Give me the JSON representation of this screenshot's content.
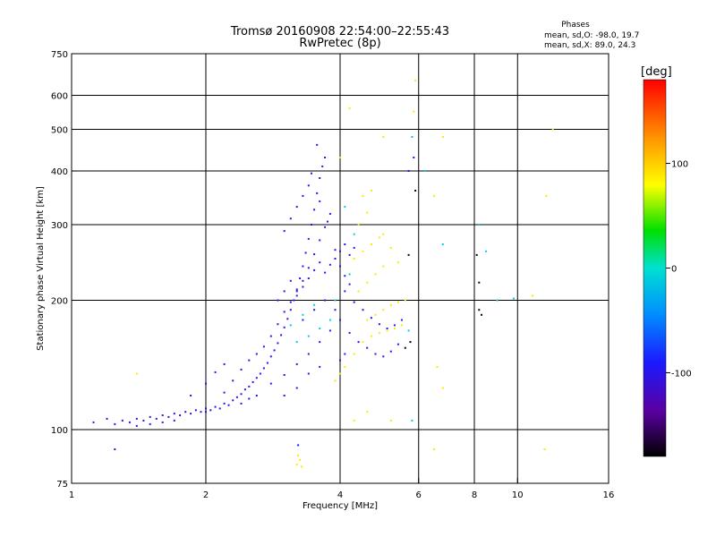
{
  "chart_data": {
    "type": "scatter",
    "title": "Tromsø 20160908 22:54:00–22:55:43",
    "subtitle": "RwPretec (8p)",
    "xlabel": "Frequency [MHz]",
    "ylabel": "Stationary phase Virtual Height [km]",
    "x_scale": "log",
    "y_scale": "log",
    "xlim": [
      1,
      16
    ],
    "ylim": [
      75,
      750
    ],
    "x_ticks": [
      1,
      2,
      4,
      6,
      8,
      10,
      16
    ],
    "x_tick_labels": [
      "1",
      "2",
      "4",
      "6",
      "8",
      "10",
      "16"
    ],
    "y_ticks": [
      75,
      100,
      200,
      300,
      400,
      500,
      600,
      750
    ],
    "y_tick_labels": [
      "75",
      "100",
      "200",
      "300",
      "400",
      "500",
      "600",
      "750"
    ],
    "grid": true,
    "stats_title": "Phases",
    "stats_lines": [
      "mean, sd,O: -98.0, 19.7",
      "mean, sd,X:  89.0, 24.3"
    ],
    "colorbar": {
      "label": "[deg]",
      "range": [
        -180,
        180
      ],
      "ticks": [
        100,
        0,
        -100
      ],
      "tick_labels": [
        "100",
        "0",
        "-100"
      ]
    },
    "series": [
      {
        "name": "O",
        "color_value": -98,
        "points": [
          [
            1.12,
            104
          ],
          [
            1.2,
            106
          ],
          [
            1.25,
            103
          ],
          [
            1.3,
            105
          ],
          [
            1.35,
            104
          ],
          [
            1.4,
            106
          ],
          [
            1.45,
            105
          ],
          [
            1.5,
            107
          ],
          [
            1.55,
            106
          ],
          [
            1.6,
            108
          ],
          [
            1.65,
            107
          ],
          [
            1.7,
            109
          ],
          [
            1.75,
            108
          ],
          [
            1.8,
            110
          ],
          [
            1.85,
            109
          ],
          [
            1.9,
            111
          ],
          [
            1.95,
            110
          ],
          [
            2.0,
            112
          ],
          [
            2.05,
            111
          ],
          [
            2.1,
            113
          ],
          [
            2.15,
            112
          ],
          [
            2.2,
            115
          ],
          [
            2.25,
            114
          ],
          [
            2.3,
            117
          ],
          [
            2.35,
            119
          ],
          [
            2.4,
            121
          ],
          [
            2.45,
            124
          ],
          [
            2.5,
            126
          ],
          [
            2.55,
            129
          ],
          [
            2.6,
            132
          ],
          [
            2.65,
            135
          ],
          [
            2.7,
            139
          ],
          [
            2.75,
            143
          ],
          [
            2.8,
            148
          ],
          [
            2.85,
            153
          ],
          [
            2.9,
            159
          ],
          [
            2.95,
            166
          ],
          [
            3.0,
            173
          ],
          [
            3.05,
            181
          ],
          [
            3.1,
            190
          ],
          [
            3.15,
            200
          ],
          [
            3.2,
            212
          ],
          [
            3.25,
            225
          ],
          [
            3.3,
            240
          ],
          [
            3.35,
            258
          ],
          [
            3.4,
            278
          ],
          [
            3.45,
            300
          ],
          [
            3.5,
            325
          ],
          [
            3.55,
            355
          ],
          [
            3.6,
            385
          ],
          [
            3.65,
            410
          ],
          [
            3.7,
            430
          ],
          [
            3.55,
            460
          ],
          [
            1.85,
            120
          ],
          [
            2.0,
            128
          ],
          [
            2.1,
            136
          ],
          [
            2.2,
            142
          ],
          [
            2.3,
            130
          ],
          [
            2.4,
            138
          ],
          [
            2.5,
            145
          ],
          [
            2.6,
            150
          ],
          [
            2.7,
            156
          ],
          [
            2.8,
            165
          ],
          [
            2.9,
            176
          ],
          [
            3.0,
            188
          ],
          [
            3.1,
            198
          ],
          [
            3.2,
            210
          ],
          [
            3.3,
            222
          ],
          [
            3.4,
            238
          ],
          [
            3.5,
            256
          ],
          [
            3.6,
            276
          ],
          [
            3.7,
            296
          ],
          [
            3.8,
            318
          ],
          [
            3.9,
            262
          ],
          [
            4.0,
            240
          ],
          [
            4.1,
            228
          ],
          [
            4.2,
            218
          ],
          [
            3.0,
            290
          ],
          [
            3.1,
            310
          ],
          [
            3.2,
            330
          ],
          [
            3.3,
            350
          ],
          [
            3.4,
            370
          ],
          [
            3.45,
            395
          ],
          [
            3.6,
            340
          ],
          [
            3.75,
            305
          ],
          [
            2.9,
            200
          ],
          [
            3.0,
            210
          ],
          [
            3.1,
            222
          ],
          [
            3.2,
            205
          ],
          [
            3.3,
            215
          ],
          [
            3.4,
            225
          ],
          [
            3.5,
            235
          ],
          [
            3.6,
            245
          ],
          [
            3.7,
            232
          ],
          [
            3.8,
            242
          ],
          [
            3.9,
            250
          ],
          [
            4.0,
            260
          ],
          [
            4.1,
            270
          ],
          [
            4.2,
            255
          ],
          [
            4.3,
            265
          ],
          [
            4.1,
            210
          ],
          [
            4.3,
            198
          ],
          [
            4.5,
            190
          ],
          [
            4.7,
            182
          ],
          [
            4.9,
            176
          ],
          [
            5.1,
            172
          ],
          [
            5.3,
            175
          ],
          [
            5.5,
            180
          ],
          [
            4.2,
            168
          ],
          [
            4.4,
            160
          ],
          [
            4.6,
            155
          ],
          [
            4.8,
            150
          ],
          [
            5.0,
            148
          ],
          [
            5.2,
            152
          ],
          [
            5.4,
            158
          ],
          [
            2.6,
            120
          ],
          [
            2.8,
            128
          ],
          [
            3.0,
            134
          ],
          [
            3.2,
            142
          ],
          [
            3.4,
            150
          ],
          [
            3.6,
            160
          ],
          [
            3.8,
            170
          ],
          [
            4.0,
            180
          ],
          [
            3.3,
            180
          ],
          [
            3.5,
            190
          ],
          [
            3.7,
            200
          ],
          [
            3.9,
            190
          ],
          [
            4.0,
            145
          ],
          [
            4.1,
            150
          ],
          [
            3.6,
            140
          ],
          [
            3.4,
            135
          ],
          [
            3.2,
            125
          ],
          [
            3.0,
            120
          ],
          [
            2.4,
            115
          ],
          [
            2.5,
            118
          ],
          [
            2.2,
            122
          ],
          [
            2.0,
            110
          ],
          [
            1.7,
            105
          ],
          [
            1.6,
            104
          ],
          [
            1.5,
            103
          ],
          [
            1.4,
            102
          ],
          [
            1.25,
            90
          ],
          [
            3.22,
            92
          ],
          [
            5.7,
            400
          ],
          [
            5.85,
            430
          ]
        ]
      },
      {
        "name": "X",
        "color_value": 89,
        "points": [
          [
            3.2,
            83
          ],
          [
            3.22,
            87
          ],
          [
            3.25,
            85
          ],
          [
            3.28,
            82
          ],
          [
            3.9,
            130
          ],
          [
            4.0,
            135
          ],
          [
            4.1,
            140
          ],
          [
            4.3,
            150
          ],
          [
            4.5,
            160
          ],
          [
            4.7,
            165
          ],
          [
            4.9,
            168
          ],
          [
            5.1,
            170
          ],
          [
            5.3,
            172
          ],
          [
            5.5,
            175
          ],
          [
            4.6,
            180
          ],
          [
            4.8,
            185
          ],
          [
            5.0,
            190
          ],
          [
            5.2,
            195
          ],
          [
            5.4,
            198
          ],
          [
            5.6,
            200
          ],
          [
            4.4,
            210
          ],
          [
            4.6,
            220
          ],
          [
            4.8,
            230
          ],
          [
            5.0,
            240
          ],
          [
            4.3,
            250
          ],
          [
            4.5,
            260
          ],
          [
            4.7,
            270
          ],
          [
            4.9,
            280
          ],
          [
            4.4,
            300
          ],
          [
            4.6,
            320
          ],
          [
            4.5,
            350
          ],
          [
            4.7,
            360
          ],
          [
            5.0,
            285
          ],
          [
            5.2,
            265
          ],
          [
            5.4,
            245
          ],
          [
            5.0,
            480
          ],
          [
            5.9,
            650
          ],
          [
            5.85,
            550
          ],
          [
            6.5,
            90
          ],
          [
            6.8,
            480
          ],
          [
            6.5,
            350
          ],
          [
            6.8,
            125
          ],
          [
            6.6,
            140
          ],
          [
            10.8,
            205
          ],
          [
            12.0,
            500
          ],
          [
            11.5,
            90
          ],
          [
            11.6,
            350
          ],
          [
            1.4,
            135
          ],
          [
            4.3,
            105
          ],
          [
            4.6,
            110
          ],
          [
            5.2,
            105
          ],
          [
            4.2,
            560
          ],
          [
            4.0,
            430
          ]
        ]
      },
      {
        "name": "",
        "color_value": -10,
        "points": [
          [
            3.2,
            160
          ],
          [
            3.4,
            165
          ],
          [
            3.6,
            172
          ],
          [
            3.8,
            180
          ],
          [
            3.9,
            200
          ],
          [
            4.2,
            230
          ],
          [
            5.8,
            105
          ],
          [
            6.2,
            400
          ],
          [
            6.8,
            270
          ],
          [
            8.2,
            300
          ],
          [
            8.5,
            260
          ],
          [
            9.0,
            200
          ],
          [
            9.8,
            202
          ],
          [
            3.1,
            175
          ],
          [
            3.3,
            185
          ],
          [
            3.5,
            195
          ],
          [
            4.1,
            330
          ],
          [
            4.3,
            285
          ],
          [
            5.8,
            480
          ],
          [
            5.7,
            170
          ]
        ]
      },
      {
        "name": "",
        "color_value": -175,
        "points": [
          [
            8.2,
            190
          ],
          [
            8.3,
            185
          ],
          [
            8.2,
            220
          ],
          [
            8.1,
            255
          ],
          [
            5.9,
            360
          ],
          [
            5.7,
            255
          ],
          [
            5.6,
            155
          ],
          [
            5.75,
            160
          ]
        ]
      }
    ]
  }
}
